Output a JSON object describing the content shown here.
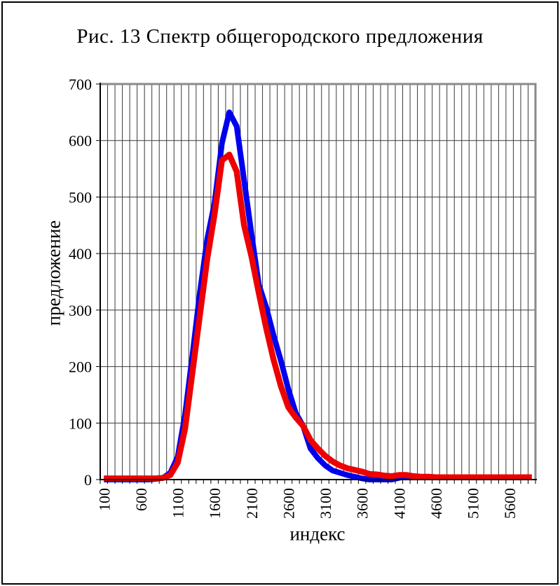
{
  "figure": {
    "border_color": "#000000",
    "background": "#ffffff"
  },
  "chart_data": {
    "type": "line",
    "title": "Рис. 13 Спектр общегородского предложения",
    "xlabel": "индекс",
    "ylabel": "предложение",
    "ylim": [
      0,
      700
    ],
    "y_ticks": [
      0,
      100,
      200,
      300,
      400,
      500,
      600,
      700
    ],
    "x_tick_labels": [
      "100",
      "600",
      "1100",
      "1600",
      "2100",
      "2600",
      "3100",
      "3600",
      "4100",
      "4600",
      "5100",
      "5600"
    ],
    "x_label_interval": 5,
    "grid": "both",
    "grid_color": "#3a3a3a",
    "frame_color": "#8a8a8a",
    "axis_color": "#000000",
    "legend": "none",
    "categories": [
      100,
      200,
      300,
      400,
      500,
      600,
      700,
      800,
      900,
      1000,
      1100,
      1200,
      1300,
      1400,
      1500,
      1600,
      1700,
      1800,
      1900,
      2000,
      2100,
      2200,
      2300,
      2400,
      2500,
      2600,
      2700,
      2800,
      2900,
      3000,
      3100,
      3200,
      3300,
      3400,
      3500,
      3600,
      3700,
      3800,
      3900,
      4000,
      4100,
      4200,
      4300,
      4400,
      4500,
      4600,
      4700,
      4800,
      4900,
      5000,
      5100,
      5200,
      5300,
      5400,
      5500,
      5600,
      5700,
      5800,
      5900
    ],
    "series": [
      {
        "name": "series-blue",
        "color": "#0000ee",
        "width": 8,
        "area_fill": "#ffffff",
        "values": [
          0,
          0,
          0,
          0,
          0,
          0,
          0,
          1,
          3,
          12,
          40,
          115,
          220,
          330,
          425,
          490,
          595,
          650,
          625,
          530,
          435,
          345,
          305,
          255,
          210,
          160,
          118,
          95,
          55,
          38,
          25,
          16,
          12,
          8,
          5,
          2,
          0,
          0,
          0,
          0,
          3,
          6,
          5,
          4,
          4,
          4,
          4,
          4,
          4,
          4,
          4,
          4,
          4,
          4,
          4,
          4,
          4,
          4,
          4
        ]
      },
      {
        "name": "series-red",
        "color": "#ee0000",
        "width": 8.5,
        "area_fill": null,
        "values": [
          2,
          2,
          2,
          2,
          2,
          2,
          2,
          2,
          3,
          8,
          30,
          90,
          190,
          290,
          390,
          470,
          565,
          575,
          545,
          450,
          395,
          330,
          268,
          212,
          165,
          128,
          110,
          95,
          70,
          55,
          42,
          32,
          25,
          20,
          17,
          14,
          10,
          9,
          7,
          6,
          8,
          8,
          6,
          5,
          5,
          4,
          4,
          4,
          4,
          4,
          4,
          4,
          4,
          4,
          4,
          4,
          4,
          4,
          4
        ]
      }
    ]
  }
}
